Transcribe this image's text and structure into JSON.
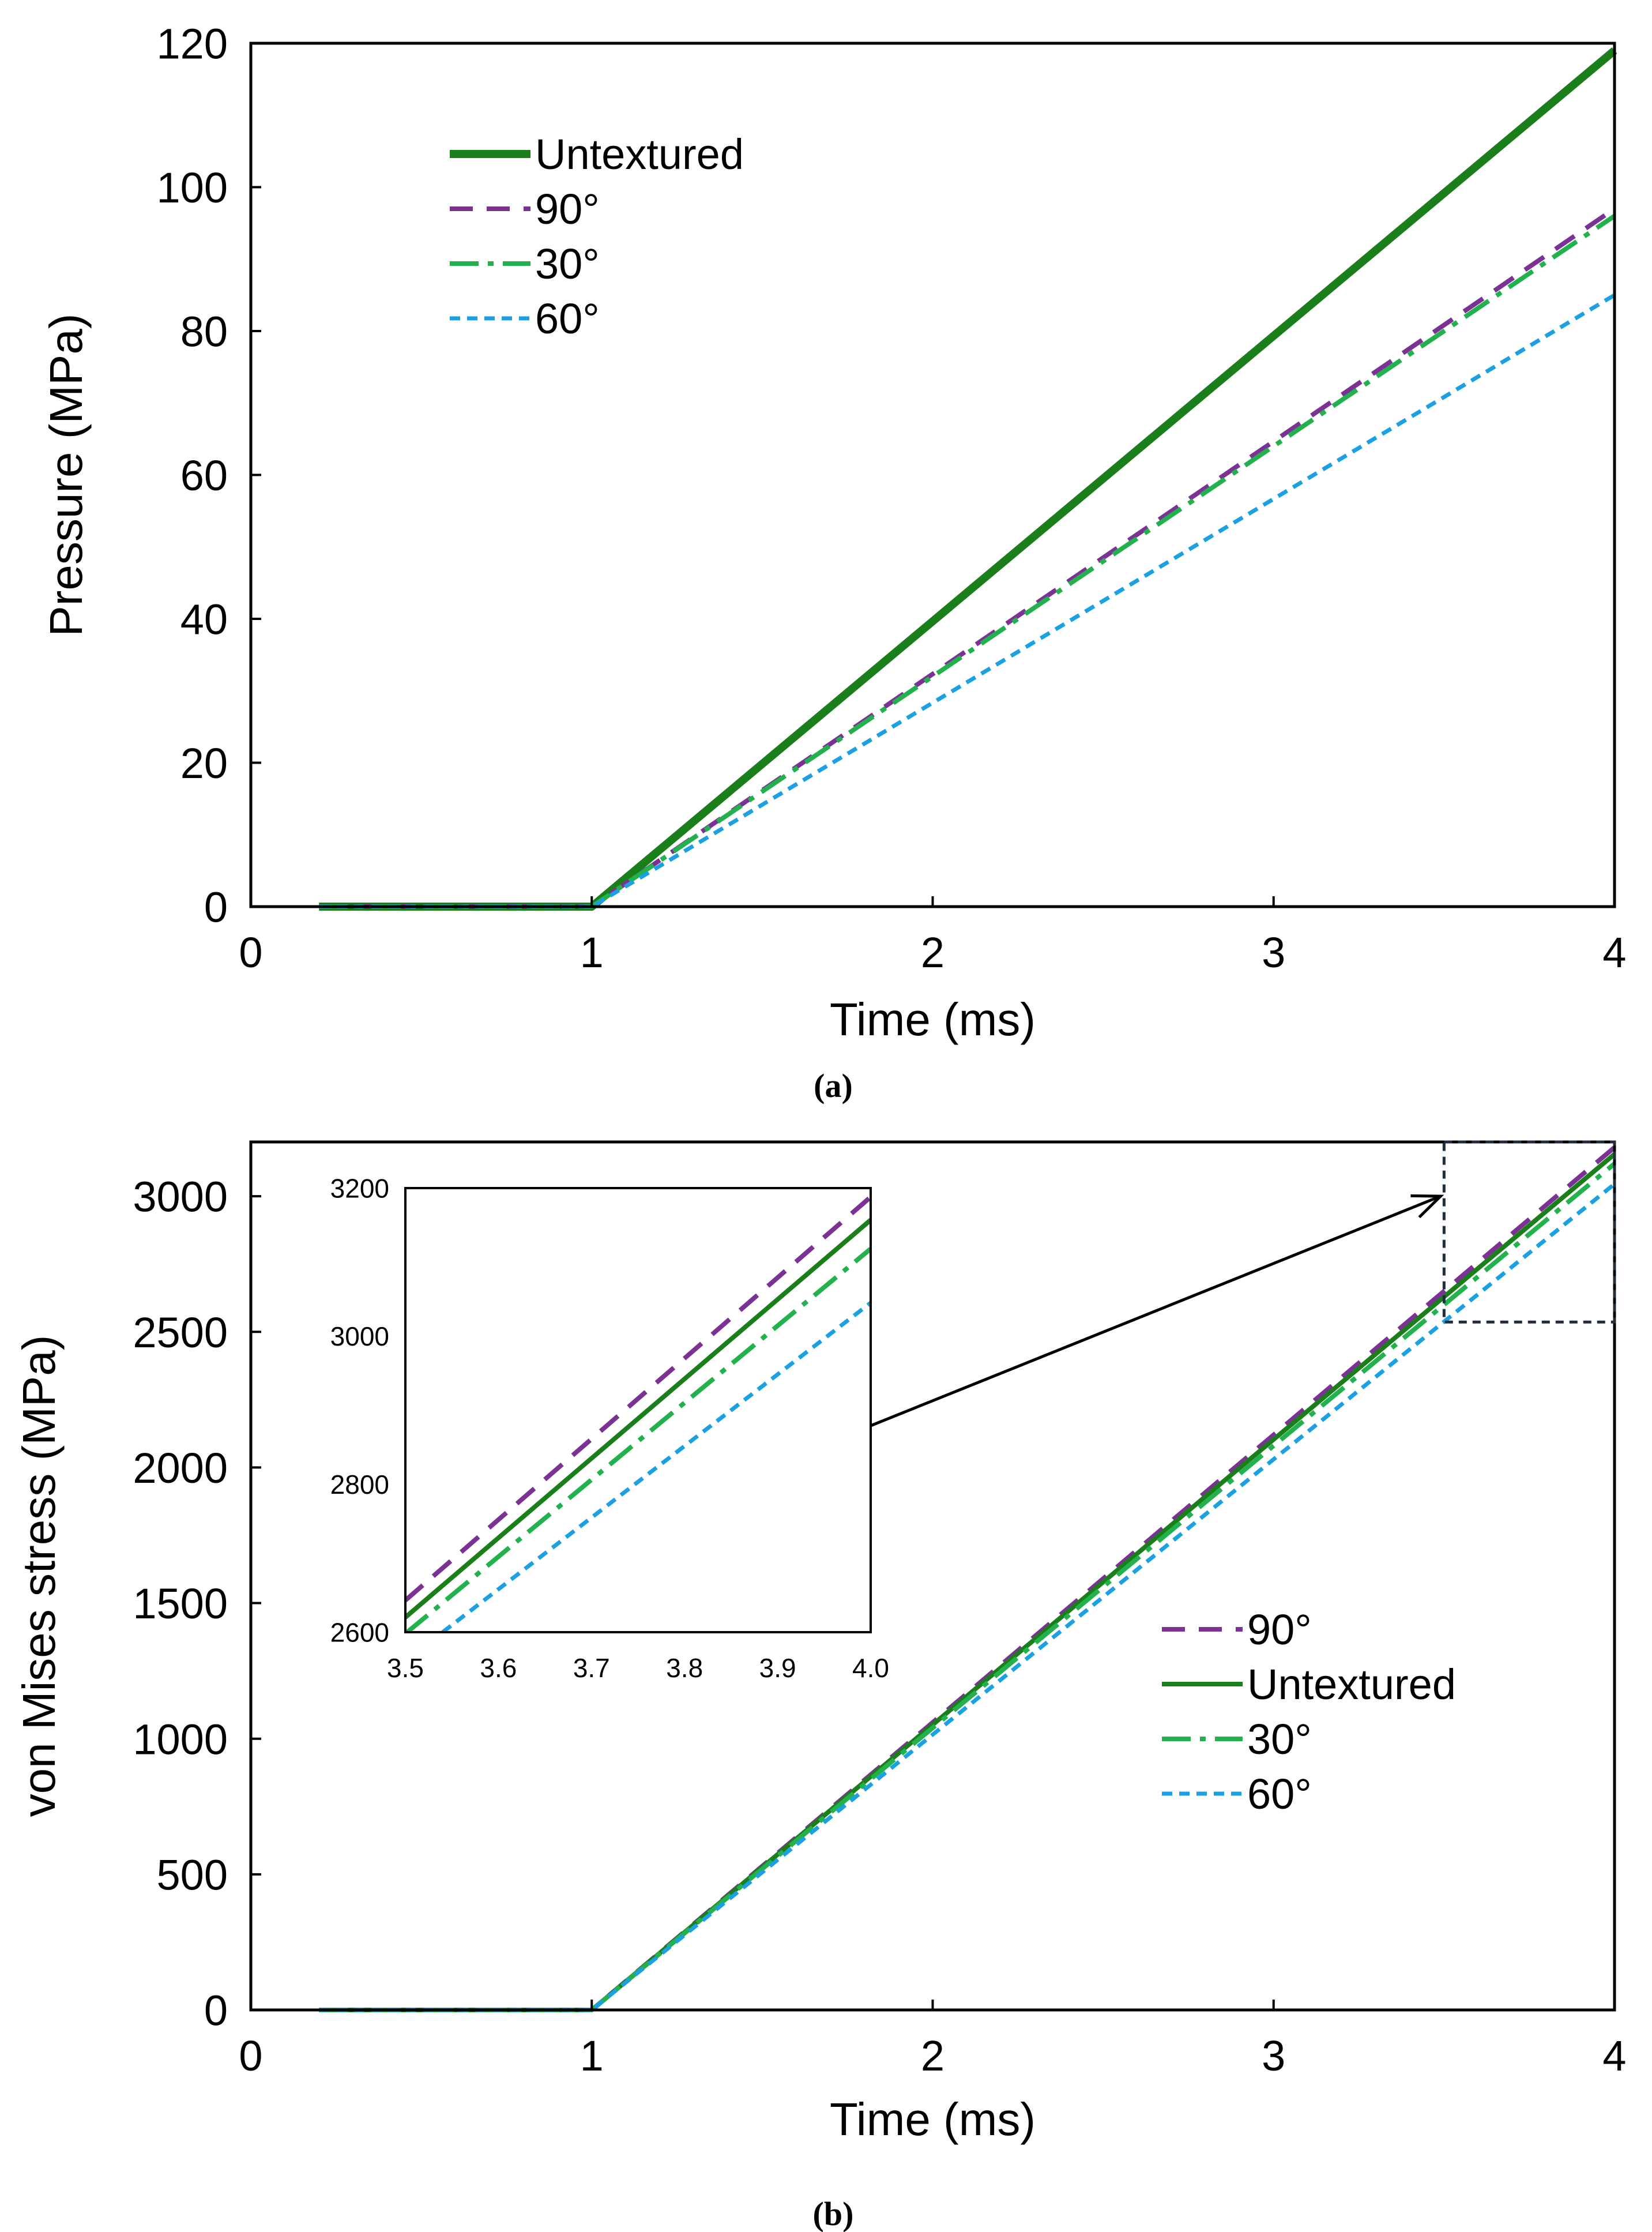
{
  "figure": {
    "captions": [
      "(a)",
      "(b)"
    ]
  },
  "colors": {
    "untextured": "#1a7f1a",
    "deg90": "#7b3294",
    "deg30": "#22b14c",
    "deg60": "#1ba1e2",
    "axis": "#000000",
    "zoom_box": "#1f2d3d"
  },
  "chart_data": [
    {
      "id": "a",
      "type": "line",
      "title": "",
      "xlabel": "Time (ms)",
      "ylabel": "Pressure (MPa)",
      "xlim": [
        0,
        4
      ],
      "ylim": [
        0,
        120
      ],
      "xticks": [
        0,
        1,
        2,
        3,
        4
      ],
      "xtick_labels": [
        "0",
        "1",
        "2",
        "3",
        "4"
      ],
      "yticks": [
        0,
        20,
        40,
        60,
        80,
        100,
        120
      ],
      "ytick_labels": [
        "0",
        "20",
        "40",
        "60",
        "80",
        "100",
        "120"
      ],
      "legend_position": "top-left",
      "series": [
        {
          "name": "Untextured",
          "key": "untextured",
          "dash": "solid-thick",
          "x": [
            0.2,
            1.0,
            4.0
          ],
          "y": [
            0,
            0,
            119
          ]
        },
        {
          "name": "90°",
          "key": "deg90",
          "dash": "dash",
          "x": [
            0.2,
            1.0,
            4.0
          ],
          "y": [
            0,
            0,
            97
          ]
        },
        {
          "name": "30°",
          "key": "deg30",
          "dash": "dashdot",
          "x": [
            0.2,
            1.0,
            4.0
          ],
          "y": [
            0,
            0,
            96
          ]
        },
        {
          "name": "60°",
          "key": "deg60",
          "dash": "shortdash",
          "x": [
            0.2,
            1.0,
            4.0
          ],
          "y": [
            0,
            0,
            85
          ]
        }
      ]
    },
    {
      "id": "b",
      "type": "line",
      "title": "",
      "xlabel": "Time (ms)",
      "ylabel": "von Mises stress (MPa)",
      "xlim": [
        0,
        4
      ],
      "ylim": [
        0,
        3200
      ],
      "xticks": [
        0,
        1,
        2,
        3,
        4
      ],
      "xtick_labels": [
        "0",
        "1",
        "2",
        "3",
        "4"
      ],
      "yticks": [
        0,
        500,
        1000,
        1500,
        2000,
        2500,
        3000
      ],
      "ytick_labels": [
        "0",
        "500",
        "1000",
        "1500",
        "2000",
        "2500",
        "3000"
      ],
      "legend_position": "center-right",
      "series": [
        {
          "name": "90°",
          "key": "deg90",
          "dash": "dash",
          "x": [
            0.2,
            1.0,
            4.0
          ],
          "y": [
            0,
            0,
            3180
          ]
        },
        {
          "name": "Untextured",
          "key": "untextured",
          "dash": "solid",
          "x": [
            0.2,
            1.0,
            4.0
          ],
          "y": [
            0,
            0,
            3155
          ]
        },
        {
          "name": "30°",
          "key": "deg30",
          "dash": "dashdot",
          "x": [
            0.2,
            1.0,
            4.0
          ],
          "y": [
            0,
            0,
            3120
          ]
        },
        {
          "name": "60°",
          "key": "deg60",
          "dash": "shortdash",
          "x": [
            0.2,
            1.0,
            4.0
          ],
          "y": [
            0,
            0,
            3045
          ]
        }
      ],
      "zoom_region": {
        "x": [
          3.5,
          4.0
        ],
        "y": [
          2600,
          3200
        ]
      },
      "inset": {
        "type": "line",
        "xlim": [
          3.5,
          4.0
        ],
        "ylim": [
          2600,
          3200
        ],
        "xticks": [
          3.5,
          3.6,
          3.7,
          3.8,
          3.9,
          4.0
        ],
        "xtick_labels": [
          "3.5",
          "3.6",
          "3.7",
          "3.8",
          "3.9",
          "4.0"
        ],
        "yticks": [
          2600,
          2800,
          3000,
          3200
        ],
        "ytick_labels": [
          "2600",
          "2800",
          "3000",
          "3200"
        ],
        "series": [
          {
            "name": "90°",
            "key": "deg90",
            "dash": "dash",
            "x": [
              3.5,
              4.0
            ],
            "y": [
              2643,
              3188
            ]
          },
          {
            "name": "Untextured",
            "key": "untextured",
            "dash": "solid",
            "x": [
              3.5,
              4.0
            ],
            "y": [
              2620,
              3157
            ]
          },
          {
            "name": "30°",
            "key": "deg30",
            "dash": "dashdot",
            "x": [
              3.5,
              4.0
            ],
            "y": [
              2598,
              3118
            ]
          },
          {
            "name": "60°",
            "key": "deg60",
            "dash": "shortdash",
            "x": [
              3.54,
              4.0
            ],
            "y": [
              2600,
              3045
            ]
          }
        ]
      }
    }
  ]
}
